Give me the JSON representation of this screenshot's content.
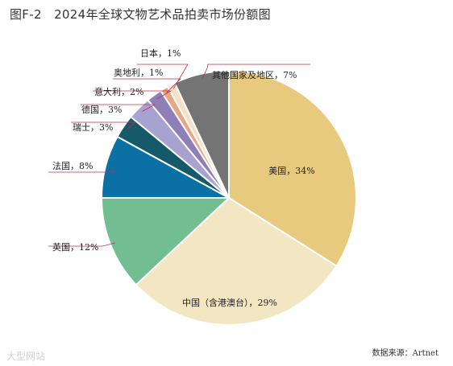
{
  "title": "图F-2　2024年全球文物艺术品拍卖市场份额图",
  "source": "数据来源：Artnet",
  "watermark": "大型网站",
  "chart_data": {
    "type": "pie",
    "title": "图F-2　2024年全球文物艺术品拍卖市场份额图",
    "start_angle_deg": 0,
    "direction": "clockwise",
    "slices": [
      {
        "label": "美国，34%",
        "name": "美国",
        "value": 34,
        "color": "#e8ca7f"
      },
      {
        "label": "中国（含港澳台），29%",
        "name": "中国（含港澳台）",
        "value": 29,
        "color": "#f3e6c2"
      },
      {
        "label": "英国，12%",
        "name": "英国",
        "value": 12,
        "color": "#72bd92"
      },
      {
        "label": "法国，8%",
        "name": "法国",
        "value": 8,
        "color": "#0b71a5"
      },
      {
        "label": "瑞士，3%",
        "name": "瑞士",
        "value": 3,
        "color": "#145a6b"
      },
      {
        "label": "德国，3%",
        "name": "德国",
        "value": 3,
        "color": "#a8a2d0"
      },
      {
        "label": "意大利，2%",
        "name": "意大利",
        "value": 2,
        "color": "#8e7fb8"
      },
      {
        "label": "奥地利，1%",
        "name": "奥地利",
        "value": 1,
        "color": "#e8a784"
      },
      {
        "label": "日本，1%",
        "name": "日本",
        "value": 1,
        "color": "#f7e0c8"
      },
      {
        "label": "其他国家及地区，7%",
        "name": "其他国家及地区",
        "value": 7,
        "color": "#747474"
      }
    ],
    "leader_color": "#c0304a"
  }
}
